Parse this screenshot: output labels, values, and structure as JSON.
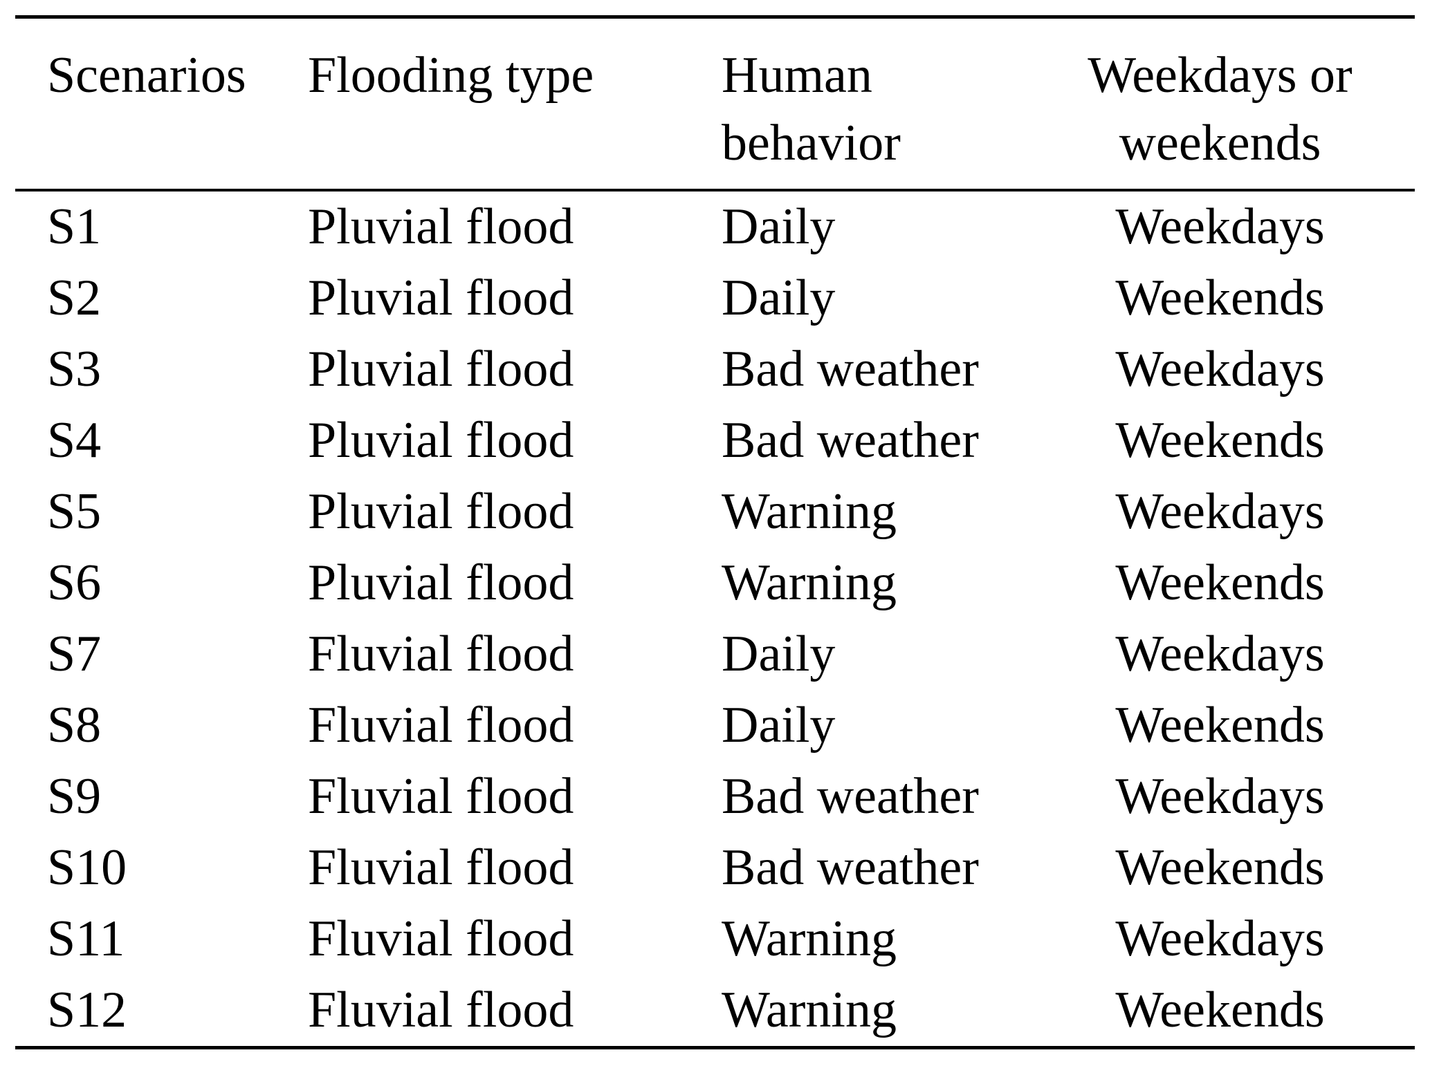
{
  "page": {
    "background_color": "#ffffff",
    "text_color": "#000000",
    "rule_color": "#000000"
  },
  "table": {
    "headers": [
      "Scenarios",
      "Flooding type",
      "Human behavior",
      "Weekdays or weekends"
    ],
    "rows": [
      [
        "S1",
        "Pluvial flood",
        "Daily",
        "Weekdays"
      ],
      [
        "S2",
        "Pluvial flood",
        "Daily",
        "Weekends"
      ],
      [
        "S3",
        "Pluvial flood",
        "Bad weather",
        "Weekdays"
      ],
      [
        "S4",
        "Pluvial flood",
        "Bad weather",
        "Weekends"
      ],
      [
        "S5",
        "Pluvial flood",
        "Warning",
        "Weekdays"
      ],
      [
        "S6",
        "Pluvial flood",
        "Warning",
        "Weekends"
      ],
      [
        "S7",
        "Fluvial flood",
        "Daily",
        "Weekdays"
      ],
      [
        "S8",
        "Fluvial flood",
        "Daily",
        "Weekends"
      ],
      [
        "S9",
        "Fluvial flood",
        "Bad weather",
        "Weekdays"
      ],
      [
        "S10",
        "Fluvial flood",
        "Bad weather",
        "Weekends"
      ],
      [
        "S11",
        "Fluvial flood",
        "Warning",
        "Weekdays"
      ],
      [
        "S12",
        "Fluvial flood",
        "Warning",
        "Weekends"
      ]
    ]
  }
}
